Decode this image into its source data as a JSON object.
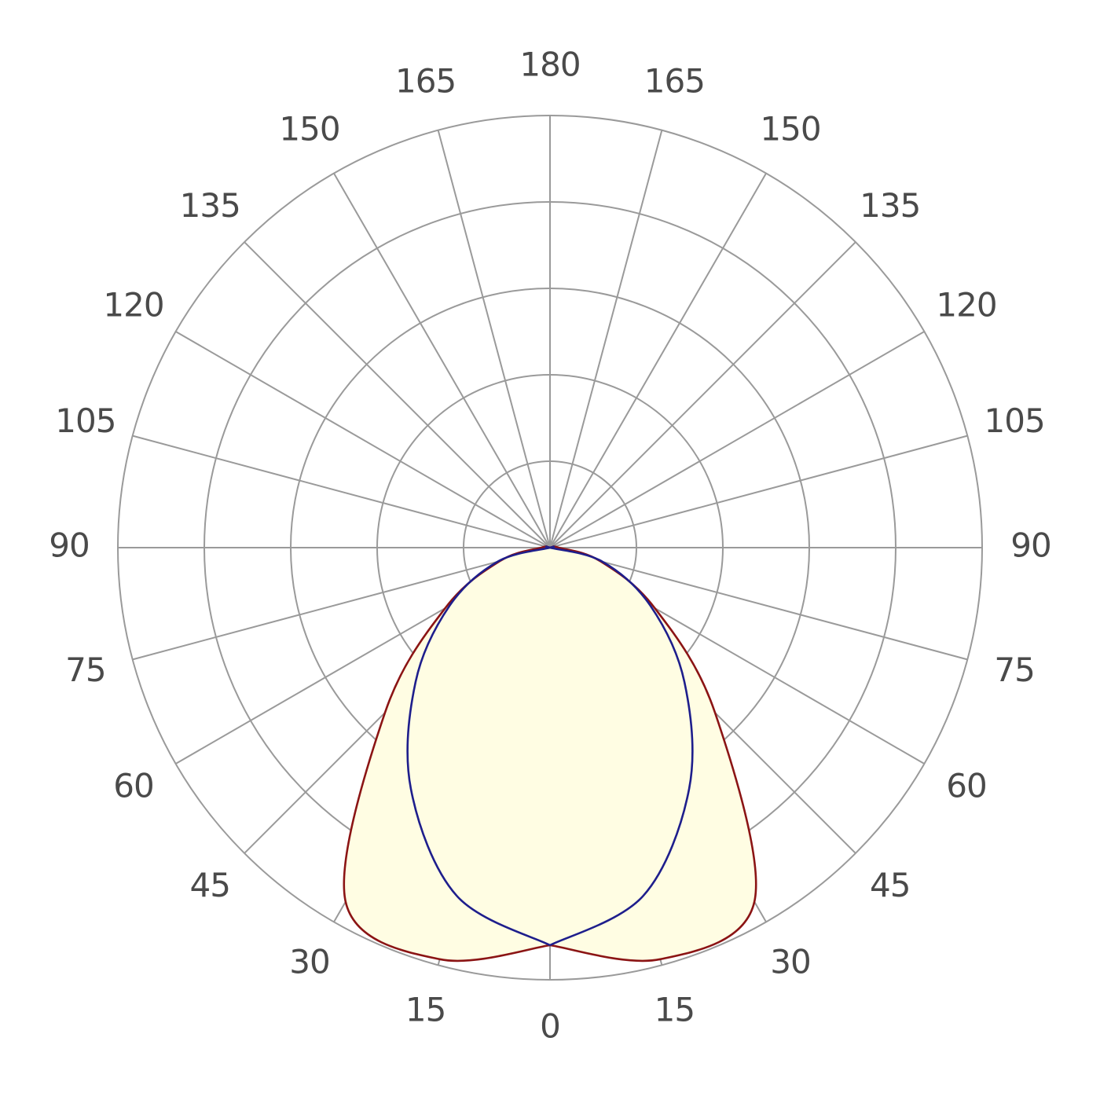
{
  "chart_data": {
    "type": "polar",
    "theta": [
      0,
      15,
      30,
      45,
      60,
      75,
      90,
      105,
      120,
      135,
      150,
      165,
      180
    ],
    "thetaticks": [
      0,
      15,
      30,
      45,
      60,
      75,
      90,
      105,
      120,
      135,
      150,
      165,
      180
    ],
    "rlim": [
      0,
      5
    ],
    "rticks": [
      1,
      2,
      3,
      4,
      5
    ],
    "grid": true,
    "grid_color": "#9a9a9a",
    "series": [
      {
        "color": "#8b1414",
        "fill": "#fffde3",
        "values": [
          4.6,
          4.93,
          4.73,
          2.7,
          1.4,
          0.6,
          0.1,
          0.03,
          0,
          0,
          0,
          0,
          0
        ]
      },
      {
        "color": "#1e1e8c",
        "values": [
          4.6,
          4.17,
          3.22,
          2.2,
          1.34,
          0.63,
          0,
          0,
          0,
          0,
          0,
          0,
          0
        ]
      }
    ]
  }
}
